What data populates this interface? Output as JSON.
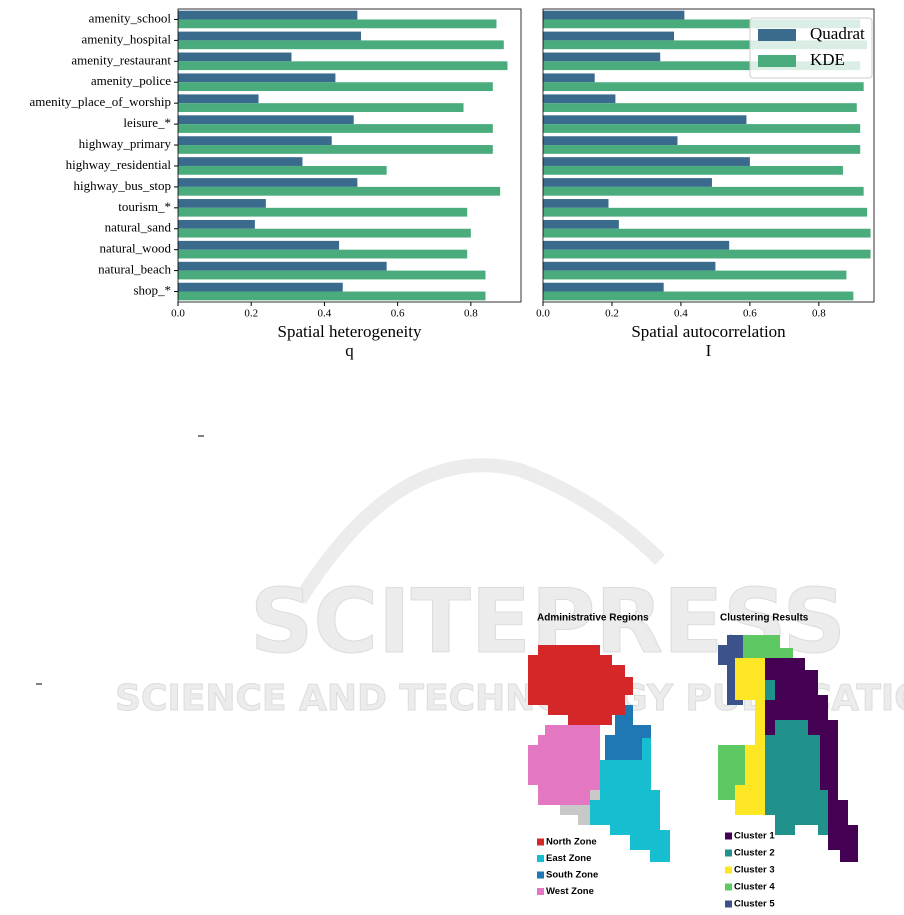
{
  "chart_data": [
    {
      "type": "barh",
      "categories": [
        "amenity_school",
        "amenity_hospital",
        "amenity_restaurant",
        "amenity_police",
        "amenity_place_of_worship",
        "leisure_*",
        "highway_primary",
        "highway_residential",
        "highway_bus_stop",
        "tourism_*",
        "natural_sand",
        "natural_wood",
        "natural_beach",
        "shop_*"
      ],
      "series": [
        {
          "name": "Quadrat",
          "color": "#3b6b8c",
          "values": [
            0.49,
            0.5,
            0.31,
            0.43,
            0.22,
            0.48,
            0.42,
            0.34,
            0.49,
            0.24,
            0.21,
            0.44,
            0.57,
            0.45
          ]
        },
        {
          "name": "KDE",
          "color": "#4aab7c",
          "values": [
            0.87,
            0.89,
            0.9,
            0.86,
            0.78,
            0.86,
            0.86,
            0.57,
            0.88,
            0.79,
            0.8,
            0.79,
            0.84,
            0.84
          ]
        }
      ],
      "xlim": [
        0,
        0.937
      ],
      "xticks": [
        {
          "value": 0,
          "label": "0.0"
        },
        0.2,
        0.4,
        0.6,
        0.8
      ],
      "xlabel": [
        "Spatial heterogeneity",
        "q"
      ],
      "legend": false
    },
    {
      "type": "barh",
      "series": [
        {
          "name": "Quadrat",
          "color": "#3b6b8c",
          "values": [
            0.41,
            0.38,
            0.34,
            0.15,
            0.21,
            0.59,
            0.39,
            0.6,
            0.49,
            0.19,
            0.22,
            0.54,
            0.5,
            0.35
          ]
        },
        {
          "name": "KDE",
          "color": "#4aab7c",
          "values": [
            0.92,
            0.94,
            0.92,
            0.93,
            0.91,
            0.92,
            0.92,
            0.87,
            0.93,
            0.94,
            0.95,
            0.95,
            0.88,
            0.9
          ]
        }
      ],
      "xlim": [
        0,
        0.96
      ],
      "xticks": [
        {
          "value": 0,
          "label": "0.0"
        },
        0.2,
        0.4,
        0.6,
        0.8
      ],
      "xlabel": [
        "Spatial autocorrelation",
        "I"
      ],
      "legend": "upper right"
    }
  ],
  "watermark": {
    "title": "SCITEPRESS",
    "subtitle": "SCIENCE AND TECHNOLOGY PUBLICATIONS"
  },
  "maps": [
    {
      "title": "Administrative Regions",
      "legend": [
        {
          "label": "North Zone",
          "color": "#d62728"
        },
        {
          "label": "East Zone",
          "color": "#17becf"
        },
        {
          "label": "South Zone",
          "color": "#1f77b4"
        },
        {
          "label": "West Zone",
          "color": "#e377c2"
        }
      ]
    },
    {
      "title": "Clustering Results",
      "legend": [
        {
          "label": "Cluster 1",
          "color": "#440154"
        },
        {
          "label": "Cluster 2",
          "color": "#21918c"
        },
        {
          "label": "Cluster 3",
          "color": "#fde725"
        },
        {
          "label": "Cluster 4",
          "color": "#5ec962"
        },
        {
          "label": "Cluster 5",
          "color": "#3b528b"
        }
      ]
    }
  ]
}
